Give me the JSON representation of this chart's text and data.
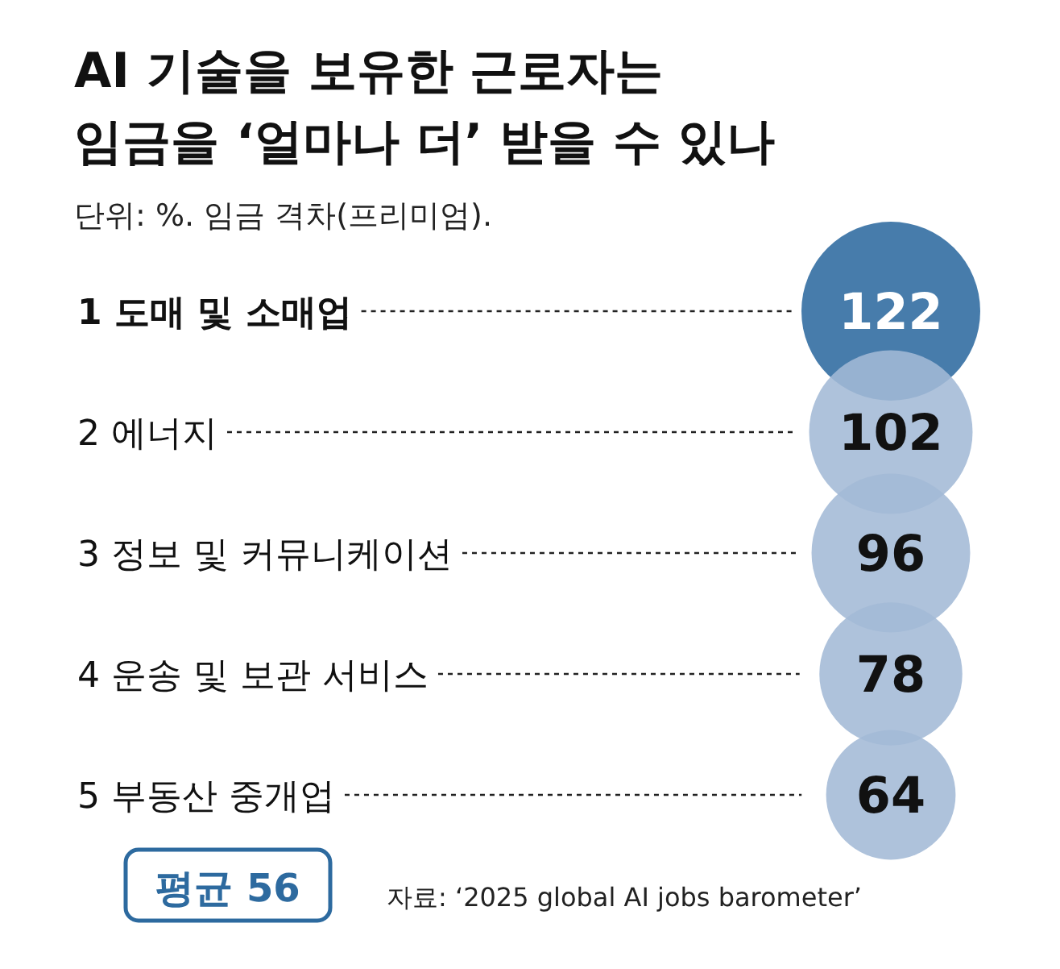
{
  "chart_data": {
    "type": "other",
    "title": "AI 기술을 보유한 근로자는\n임금을 ‘얼마나 더’ 받을 수 있나",
    "subtitle": "단위: %. 임금 격차(프리미엄).",
    "categories": [
      "1 도매 및 소매업",
      "2 에너지",
      "3 정보 및 커뮤니케이션",
      "4 운송 및 보관 서비스",
      "5 부동산 중개업"
    ],
    "values": [
      122,
      102,
      96,
      78,
      64
    ],
    "colors": [
      "#2d6a9f",
      "#a3bad6",
      "#a3bad6",
      "#a3bad6",
      "#a3bad6"
    ],
    "data_labels": true,
    "annotations": [
      "평균 56",
      "자료: ‘2025 global AI jobs barometer’"
    ]
  }
}
